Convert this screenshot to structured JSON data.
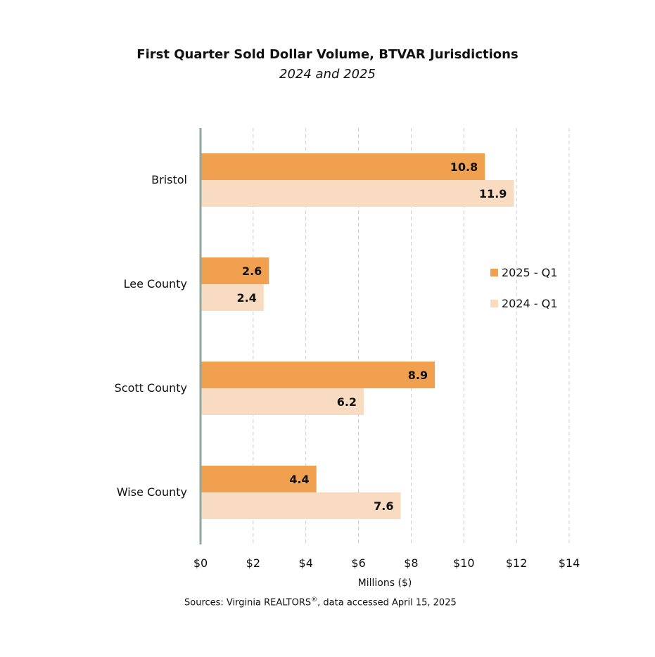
{
  "chart_data": {
    "type": "bar",
    "orientation": "horizontal",
    "title": "First Quarter Sold Dollar Volume, BTVAR Jurisdictions",
    "subtitle": "2024 and 2025",
    "categories": [
      "Bristol",
      "Lee County",
      "Scott County",
      "Wise County"
    ],
    "series": [
      {
        "name": "2025 - Q1",
        "values": [
          10.8,
          2.6,
          8.9,
          4.4
        ],
        "color": "#F0A04E"
      },
      {
        "name": "2024 - Q1",
        "values": [
          11.9,
          2.4,
          6.2,
          7.6
        ],
        "color": "#F8DBC0"
      }
    ],
    "xlabel": "Millions ($)",
    "xlim": [
      0,
      14
    ],
    "xticks": [
      0,
      2,
      4,
      6,
      8,
      10,
      12,
      14
    ],
    "xtick_labels": [
      "$0",
      "$2",
      "$4",
      "$6",
      "$8",
      "$10",
      "$12",
      "$14"
    ],
    "grid": "vertical dashed",
    "legend_position": "right",
    "source_prefix": "Sources: Virginia REALTORS",
    "source_mark": "®",
    "source_suffix": ", data accessed April 15, 2025"
  }
}
